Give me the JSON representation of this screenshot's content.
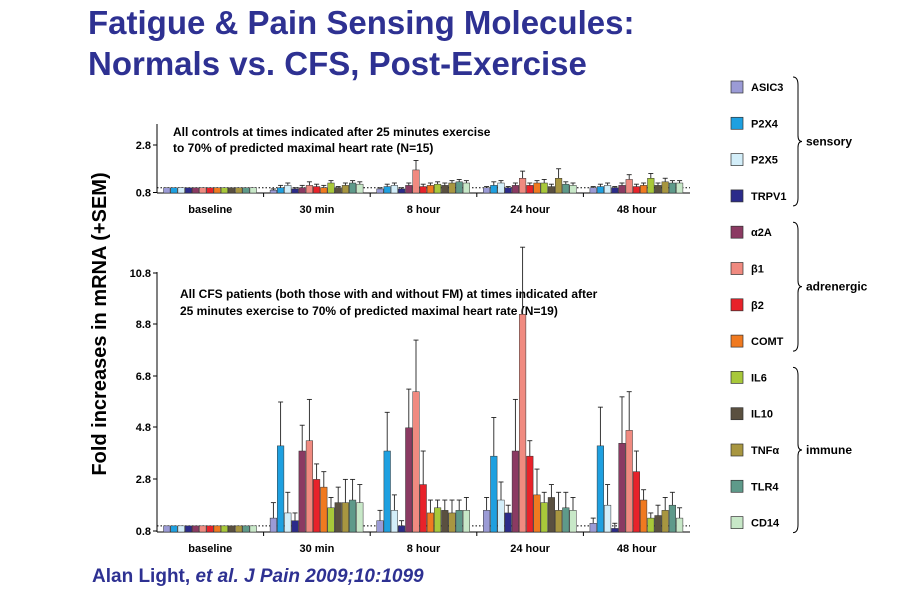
{
  "title": {
    "line1": "Fatigue & Pain Sensing Molecules:",
    "line2": "Normals vs. CFS, Post-Exercise"
  },
  "citation": {
    "author": "Alan Light, ",
    "ref": "et al. J Pain 2009;10:1099"
  },
  "y_axis_label": "Fold increases in mRNA (+SEM)",
  "legend": {
    "items": [
      {
        "name": "ASIC3",
        "color": "#9b9bd6"
      },
      {
        "name": "P2X4",
        "color": "#1ea0e0"
      },
      {
        "name": "P2X5",
        "color": "#d3eef9"
      },
      {
        "name": "TRPV1",
        "color": "#2b2b8a"
      },
      {
        "name": "α2A",
        "color": "#8b3a62"
      },
      {
        "name": "β1",
        "color": "#f08a80"
      },
      {
        "name": "β2",
        "color": "#e8222a"
      },
      {
        "name": "COMT",
        "color": "#f07a20"
      },
      {
        "name": "IL6",
        "color": "#a8c83a"
      },
      {
        "name": "IL10",
        "color": "#5a5040"
      },
      {
        "name": "TNFα",
        "color": "#a89640"
      },
      {
        "name": "TLR4",
        "color": "#5e9a8a"
      },
      {
        "name": "CD14",
        "color": "#c8e8c8"
      }
    ],
    "groups": [
      {
        "label": "sensory",
        "from": 0,
        "to": 3
      },
      {
        "label": "adrenergic",
        "from": 4,
        "to": 7
      },
      {
        "label": "immune",
        "from": 8,
        "to": 12
      }
    ]
  },
  "chart_data": [
    {
      "type": "bar",
      "annotation": [
        "All controls at times indicated after 25 minutes exercise",
        "to 70% of predicted maximal heart rate (N=15)"
      ],
      "categories": [
        "baseline",
        "30 min",
        "8 hour",
        "24 hour",
        "48 hour"
      ],
      "yticks": [
        "0.8",
        "2.8"
      ],
      "ylim": [
        0.8,
        2.8
      ],
      "series_names": [
        "ASIC3",
        "P2X4",
        "P2X5",
        "TRPV1",
        "α2A",
        "β1",
        "β2",
        "COMT",
        "IL6",
        "IL10",
        "TNFα",
        "TLR4",
        "CD14"
      ],
      "values": [
        [
          1,
          1,
          1,
          1,
          1,
          1,
          1,
          1,
          1,
          1,
          1,
          1,
          1
        ],
        [
          0.9,
          1.0,
          1.1,
          0.95,
          1.0,
          1.1,
          1.05,
          1.0,
          1.2,
          1.0,
          1.1,
          1.2,
          1.15
        ],
        [
          0.95,
          1.05,
          1.1,
          0.95,
          1.1,
          1.75,
          1.05,
          1.1,
          1.15,
          1.1,
          1.2,
          1.25,
          1.2
        ],
        [
          1.0,
          1.1,
          1.2,
          1.0,
          1.1,
          1.4,
          1.1,
          1.2,
          1.2,
          1.05,
          1.4,
          1.15,
          1.1
        ],
        [
          1.0,
          1.05,
          1.1,
          1.0,
          1.1,
          1.35,
          1.05,
          1.1,
          1.4,
          1.1,
          1.25,
          1.2,
          1.2
        ]
      ],
      "errors": [
        [
          0,
          0,
          0,
          0,
          0,
          0,
          0,
          0,
          0,
          0,
          0,
          0,
          0
        ],
        [
          0.05,
          0.1,
          0.1,
          0.05,
          0.1,
          0.15,
          0.1,
          0.1,
          0.1,
          0.05,
          0.1,
          0.1,
          0.1
        ],
        [
          0.05,
          0.1,
          0.1,
          0.05,
          0.1,
          0.4,
          0.1,
          0.1,
          0.1,
          0.1,
          0.1,
          0.1,
          0.1
        ],
        [
          0.05,
          0.15,
          0.1,
          0.05,
          0.1,
          0.3,
          0.1,
          0.1,
          0.15,
          0.1,
          0.4,
          0.1,
          0.1
        ],
        [
          0.05,
          0.1,
          0.1,
          0.05,
          0.1,
          0.2,
          0.1,
          0.1,
          0.2,
          0.1,
          0.15,
          0.1,
          0.1
        ]
      ]
    },
    {
      "type": "bar",
      "annotation": [
        "All CFS patients (both those with and without FM) at times indicated after",
        "25 minutes exercise to 70% of predicted maximal heart rate (N=19)"
      ],
      "categories": [
        "baseline",
        "30 min",
        "8 hour",
        "24 hour",
        "48 hour"
      ],
      "yticks": [
        "0.8",
        "2.8",
        "4.8",
        "6.8",
        "8.8",
        "10.8"
      ],
      "ylim": [
        0.8,
        10.8
      ],
      "series_names": [
        "ASIC3",
        "P2X4",
        "P2X5",
        "TRPV1",
        "α2A",
        "β1",
        "β2",
        "COMT",
        "IL6",
        "IL10",
        "TNFα",
        "TLR4",
        "CD14"
      ],
      "values": [
        [
          1,
          1,
          1,
          1,
          1,
          1,
          1,
          1,
          1,
          1,
          1,
          1,
          1
        ],
        [
          1.3,
          4.1,
          1.5,
          1.2,
          3.9,
          4.3,
          2.8,
          2.5,
          1.7,
          1.9,
          1.9,
          2.0,
          1.9
        ],
        [
          1.2,
          3.9,
          1.6,
          1.0,
          4.8,
          6.2,
          2.6,
          1.5,
          1.7,
          1.6,
          1.5,
          1.6,
          1.6
        ],
        [
          1.6,
          3.7,
          2.0,
          1.5,
          3.9,
          9.2,
          3.7,
          2.2,
          1.9,
          2.1,
          1.6,
          1.7,
          1.6
        ],
        [
          1.1,
          4.1,
          1.8,
          0.9,
          4.2,
          4.7,
          3.1,
          2.0,
          1.3,
          1.4,
          1.6,
          1.8,
          1.3
        ]
      ],
      "errors": [
        [
          0,
          0,
          0,
          0,
          0,
          0,
          0,
          0,
          0,
          0,
          0,
          0,
          0
        ],
        [
          0.6,
          1.7,
          0.8,
          0.3,
          1.0,
          1.6,
          0.6,
          0.6,
          0.4,
          0.6,
          0.9,
          0.8,
          0.7
        ],
        [
          0.4,
          1.5,
          0.6,
          0.2,
          1.5,
          2.0,
          1.3,
          0.5,
          0.3,
          0.4,
          0.5,
          0.4,
          0.5
        ],
        [
          0.5,
          1.5,
          0.7,
          0.3,
          2.0,
          2.6,
          0.6,
          1.0,
          0.4,
          0.5,
          0.7,
          0.6,
          0.5
        ],
        [
          0.2,
          1.5,
          0.8,
          0.2,
          1.8,
          1.5,
          0.8,
          0.4,
          0.2,
          0.4,
          0.5,
          0.5,
          0.4
        ]
      ]
    }
  ]
}
